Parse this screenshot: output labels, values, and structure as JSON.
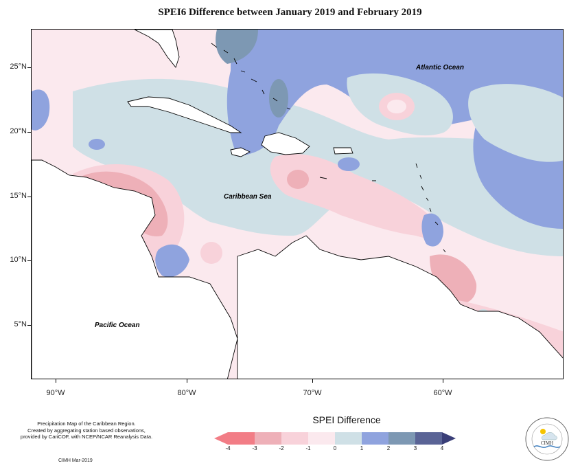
{
  "title": "SPEI6 Difference between January 2019 and February 2019",
  "labels": {
    "atlantic": "Atlantic Ocean",
    "caribbean": "Caribbean Sea",
    "pacific": "Pacific Ocean"
  },
  "lat_ticks": [
    "25°N",
    "20°N",
    "15°N",
    "10°N",
    "5°N"
  ],
  "lon_ticks": [
    "90°W",
    "80°W",
    "70°W",
    "60°W"
  ],
  "notes": {
    "line1": "Precipitation Map of the Caribbean Region.",
    "line2": "Created by aggregating station based observations,",
    "line3": "provided by CariCOF, with NCEP/NCAR Reanalysis Data.",
    "credit": "CIMH Mar-2019"
  },
  "legend": {
    "title": "SPEI Difference",
    "ticks": [
      "-4",
      "-3",
      "-2",
      "-1",
      "0",
      "1",
      "2",
      "3",
      "4"
    ],
    "colors": [
      "#f27d86",
      "#eeb0b8",
      "#f8d2da",
      "#fbe9ee",
      "#cfe0e6",
      "#8fa3de",
      "#7d98b3",
      "#5a6496",
      "#3a3f78"
    ]
  },
  "logo": {
    "text": "CIMH"
  },
  "colors": {
    "land_outline": "#000000",
    "strong_blue": "#8fa3de",
    "light_blue": "#cfe0e6",
    "pink_light": "#fbe9ee",
    "pink": "#f8d2da",
    "red": "#eeb0b8",
    "slate": "#7d98b3"
  }
}
